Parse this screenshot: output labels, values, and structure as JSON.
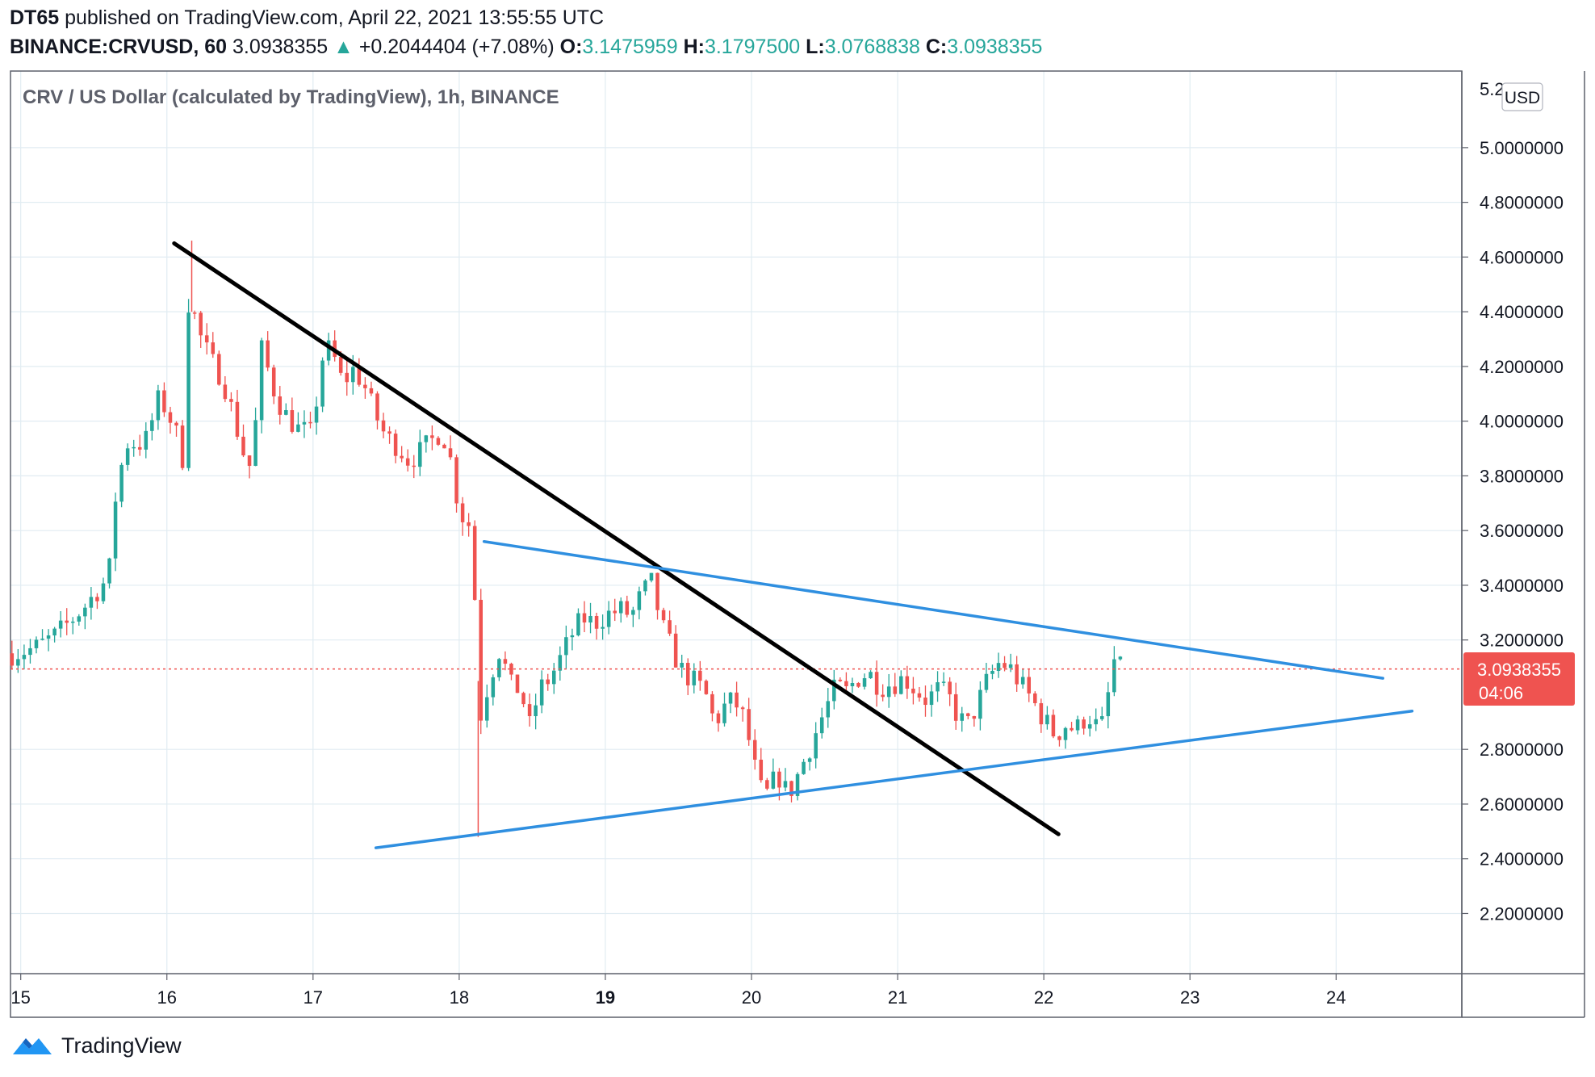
{
  "header": {
    "author": "DT65",
    "published_text": "published on TradingView.com, April 22, 2021 13:55:55 UTC",
    "symbol": "BINANCE:CRVUSD, 60",
    "last": "3.0938355",
    "change_arrow": "▲",
    "change": "+0.2044404 (+7.08%)",
    "o_label": "O:",
    "o_value": "3.1475959",
    "h_label": "H:",
    "h_value": "3.1797500",
    "l_label": "L:",
    "l_value": "3.0768838",
    "c_label": "C:",
    "c_value": "3.0938355"
  },
  "chart_title": "CRV / US Dollar (calculated by TradingView), 1h, BINANCE",
  "currency_button": "USD",
  "price_label": {
    "price": "3.0938355",
    "countdown": "04:06"
  },
  "brand": "TradingView",
  "colors": {
    "up": "#26a69a",
    "down": "#ef5350",
    "trendline_black": "#000000",
    "trendline_blue": "#2f8fe0",
    "grid": "#e1ecf2",
    "price_line": "#ef5350",
    "brand_blue": "#2196f3"
  },
  "chart_data": {
    "type": "candlestick",
    "title": "CRV / US Dollar (calculated by TradingView), 1h, BINANCE",
    "y_ticks": [
      "5.0000000",
      "4.8000000",
      "4.6000000",
      "4.4000000",
      "4.2000000",
      "4.0000000",
      "3.8000000",
      "3.6000000",
      "3.4000000",
      "3.2000000",
      "2.8000000",
      "2.6000000",
      "2.4000000",
      "2.2000000"
    ],
    "y_tick_values": [
      5.0,
      4.8,
      4.6,
      4.4,
      4.2,
      4.0,
      3.8,
      3.6,
      3.4,
      3.2,
      2.8,
      2.6,
      2.4,
      2.2
    ],
    "y_top_partial": "5.2",
    "ylim": [
      1.98,
      5.28
    ],
    "x_ticks": [
      "15",
      "16",
      "17",
      "18",
      "19",
      "20",
      "21",
      "22",
      "23",
      "24"
    ],
    "x_tick_days": [
      15,
      16,
      17,
      18,
      19,
      20,
      21,
      22,
      23,
      24
    ],
    "x_bold_tick": "19",
    "xlim": [
      14.93,
      24.86
    ],
    "last_price": 3.0938355,
    "trendlines": [
      {
        "color": "black",
        "from": [
          16.05,
          4.65
        ],
        "to": [
          22.1,
          2.49
        ]
      },
      {
        "color": "blue",
        "from": [
          18.17,
          3.56
        ],
        "to": [
          24.32,
          3.06
        ]
      },
      {
        "color": "blue",
        "from": [
          17.43,
          2.44
        ],
        "to": [
          24.52,
          2.94
        ]
      }
    ],
    "anchors": [
      [
        14.93,
        3.15
      ],
      [
        15.1,
        3.17
      ],
      [
        15.25,
        3.22
      ],
      [
        15.45,
        3.33
      ],
      [
        15.55,
        3.4
      ],
      [
        15.6,
        3.42
      ],
      [
        15.65,
        3.73
      ],
      [
        15.72,
        3.92
      ],
      [
        15.85,
        3.92
      ],
      [
        15.95,
        4.09
      ],
      [
        16.05,
        3.98
      ],
      [
        16.12,
        3.84
      ],
      [
        16.15,
        4.47
      ],
      [
        16.22,
        4.32
      ],
      [
        16.3,
        4.22
      ],
      [
        16.38,
        4.16
      ],
      [
        16.45,
        4.03
      ],
      [
        16.52,
        3.89
      ],
      [
        16.58,
        3.82
      ],
      [
        16.65,
        4.27
      ],
      [
        16.72,
        4.13
      ],
      [
        16.8,
        4.03
      ],
      [
        16.9,
        3.97
      ],
      [
        17.0,
        3.95
      ],
      [
        17.05,
        4.22
      ],
      [
        17.12,
        4.27
      ],
      [
        17.2,
        4.14
      ],
      [
        17.28,
        4.19
      ],
      [
        17.35,
        4.13
      ],
      [
        17.42,
        4.03
      ],
      [
        17.5,
        3.94
      ],
      [
        17.58,
        3.91
      ],
      [
        17.65,
        3.86
      ],
      [
        17.72,
        3.88
      ],
      [
        17.8,
        3.92
      ],
      [
        17.88,
        3.97
      ],
      [
        17.95,
        3.84
      ],
      [
        18.0,
        3.67
      ],
      [
        18.07,
        3.62
      ],
      [
        18.12,
        3.26
      ],
      [
        18.15,
        2.91
      ],
      [
        18.2,
        3.05
      ],
      [
        18.28,
        3.17
      ],
      [
        18.35,
        3.03
      ],
      [
        18.42,
        3.02
      ],
      [
        18.48,
        2.88
      ],
      [
        18.55,
        3.02
      ],
      [
        18.62,
        3.06
      ],
      [
        18.7,
        3.14
      ],
      [
        18.78,
        3.23
      ],
      [
        18.85,
        3.28
      ],
      [
        18.92,
        3.26
      ],
      [
        19.0,
        3.29
      ],
      [
        19.1,
        3.31
      ],
      [
        19.18,
        3.29
      ],
      [
        19.25,
        3.37
      ],
      [
        19.32,
        3.41
      ],
      [
        19.38,
        3.26
      ],
      [
        19.45,
        3.17
      ],
      [
        19.52,
        3.09
      ],
      [
        19.6,
        3.05
      ],
      [
        19.68,
        3.01
      ],
      [
        19.75,
        2.89
      ],
      [
        19.8,
        2.95
      ],
      [
        19.88,
        2.98
      ],
      [
        19.95,
        2.91
      ],
      [
        20.0,
        2.79
      ],
      [
        20.05,
        2.66
      ],
      [
        20.1,
        2.63
      ],
      [
        20.18,
        2.71
      ],
      [
        20.25,
        2.63
      ],
      [
        20.32,
        2.71
      ],
      [
        20.4,
        2.81
      ],
      [
        20.5,
        2.94
      ],
      [
        20.58,
        3.03
      ],
      [
        20.65,
        3.01
      ],
      [
        20.72,
        3.06
      ],
      [
        20.8,
        3.08
      ],
      [
        20.88,
        3.03
      ],
      [
        20.95,
        3.04
      ],
      [
        21.05,
        3.06
      ],
      [
        21.12,
        3.02
      ],
      [
        21.2,
        2.98
      ],
      [
        21.28,
        3.02
      ],
      [
        21.35,
        2.99
      ],
      [
        21.42,
        2.91
      ],
      [
        21.48,
        2.89
      ],
      [
        21.55,
        2.97
      ],
      [
        21.62,
        3.06
      ],
      [
        21.7,
        3.12
      ],
      [
        21.78,
        3.09
      ],
      [
        21.85,
        3.03
      ],
      [
        21.92,
        2.98
      ],
      [
        22.0,
        2.91
      ],
      [
        22.08,
        2.85
      ],
      [
        22.15,
        2.89
      ],
      [
        22.22,
        2.87
      ],
      [
        22.3,
        2.93
      ],
      [
        22.38,
        2.87
      ],
      [
        22.42,
        2.91
      ],
      [
        22.47,
        3.13
      ],
      [
        22.53,
        3.09
      ]
    ]
  }
}
